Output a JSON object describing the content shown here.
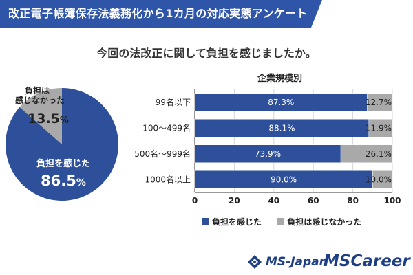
{
  "header": {
    "title": "改正電子帳簿保存法義務化から1カ月の対応実態アンケート"
  },
  "question": "今回の法改正に関して負担を感じましたか。",
  "colors": {
    "primary": "#2e4f9a",
    "secondary": "#a9a9a9",
    "header_bg": "#2e55a7",
    "logo": "#1e3e85"
  },
  "chart_data": [
    {
      "type": "pie",
      "slices": [
        {
          "name": "負担を感じた",
          "value": 86.5,
          "value_label": "86.5",
          "unit": "%"
        },
        {
          "name": "負担は感じなかった",
          "value": 13.5,
          "value_label": "13.5",
          "unit": "%"
        }
      ],
      "slice_label_lines": [
        [
          "負担を感じた"
        ],
        [
          "負担は",
          "感じなかった"
        ]
      ]
    },
    {
      "type": "bar",
      "orientation": "horizontal",
      "stacked": true,
      "title": "企業規模別",
      "categories": [
        "99名以下",
        "100～499名",
        "500名～999名",
        "1000名以上"
      ],
      "series": [
        {
          "name": "負担を感じた",
          "values": [
            87.3,
            88.1,
            73.9,
            90.0
          ],
          "labels": [
            "87.3%",
            "88.1%",
            "73.9%",
            "90.0%"
          ]
        },
        {
          "name": "負担は感じなかった",
          "values": [
            12.7,
            11.9,
            26.1,
            10.0
          ],
          "labels": [
            "12.7%",
            "11.9%",
            "26.1%",
            "10.0%"
          ]
        }
      ],
      "xlim": [
        0,
        100
      ],
      "xticks": [
        "0",
        "20",
        "40",
        "60",
        "80",
        "100"
      ],
      "grid": true,
      "legend_position": "bottom"
    }
  ],
  "legend": [
    {
      "name": "負担を感じた"
    },
    {
      "name": "負担は感じなかった"
    }
  ],
  "footer": {
    "logo1": "MS-Japan",
    "logo2": "MSCareer"
  }
}
